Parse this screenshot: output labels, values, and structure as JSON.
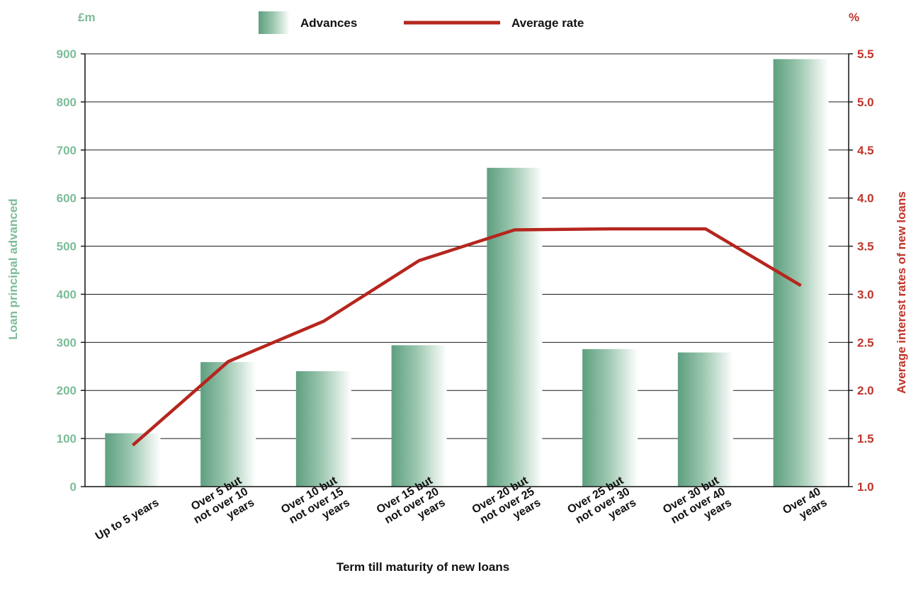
{
  "chart_data": {
    "type": "bar",
    "combo": "bar-line-dual-axis",
    "categories": [
      [
        "Up to 5 years"
      ],
      [
        "Over 5 but",
        "not over 10",
        "years"
      ],
      [
        "Over 10 but",
        "not over 15",
        "years"
      ],
      [
        "Over 15 but",
        "not over 20",
        "years"
      ],
      [
        "Over 20 but",
        "not over 25",
        "years"
      ],
      [
        "Over 25 but",
        "not over 30",
        "years"
      ],
      [
        "Over 30 but",
        "not over 40",
        "years"
      ],
      [
        "Over 40",
        "years"
      ]
    ],
    "series": [
      {
        "name": "Advances",
        "type": "bar",
        "axis": "left",
        "values": [
          111,
          259,
          240,
          294,
          663,
          286,
          279,
          889
        ]
      },
      {
        "name": "Average rate",
        "type": "line",
        "axis": "right",
        "values": [
          1.43,
          2.3,
          2.72,
          3.35,
          3.67,
          3.68,
          3.68,
          3.09
        ]
      }
    ],
    "xlabel": "Term till maturity of new loans",
    "ylabel_left": "Loan principal advanced",
    "ylabel_right": "Average interest rates of new loans",
    "unit_left": "£m",
    "unit_right": "%",
    "ylim_left": [
      0,
      900
    ],
    "ylim_right": [
      1.0,
      5.5
    ],
    "yticks_left": [
      "0",
      "100",
      "200",
      "300",
      "400",
      "500",
      "600",
      "700",
      "800",
      "900"
    ],
    "yticks_right": [
      "1.0",
      "1.5",
      "2.0",
      "2.5",
      "3.0",
      "3.5",
      "4.0",
      "4.5",
      "5.0",
      "5.5"
    ],
    "grid": true,
    "legend": "top-center",
    "colors": {
      "bar": "#6aa98a",
      "line": "#b5261e",
      "left_axis_text": "#7dbc98",
      "right_axis_text": "#c0352a",
      "grid": "#1a1a1a"
    }
  }
}
